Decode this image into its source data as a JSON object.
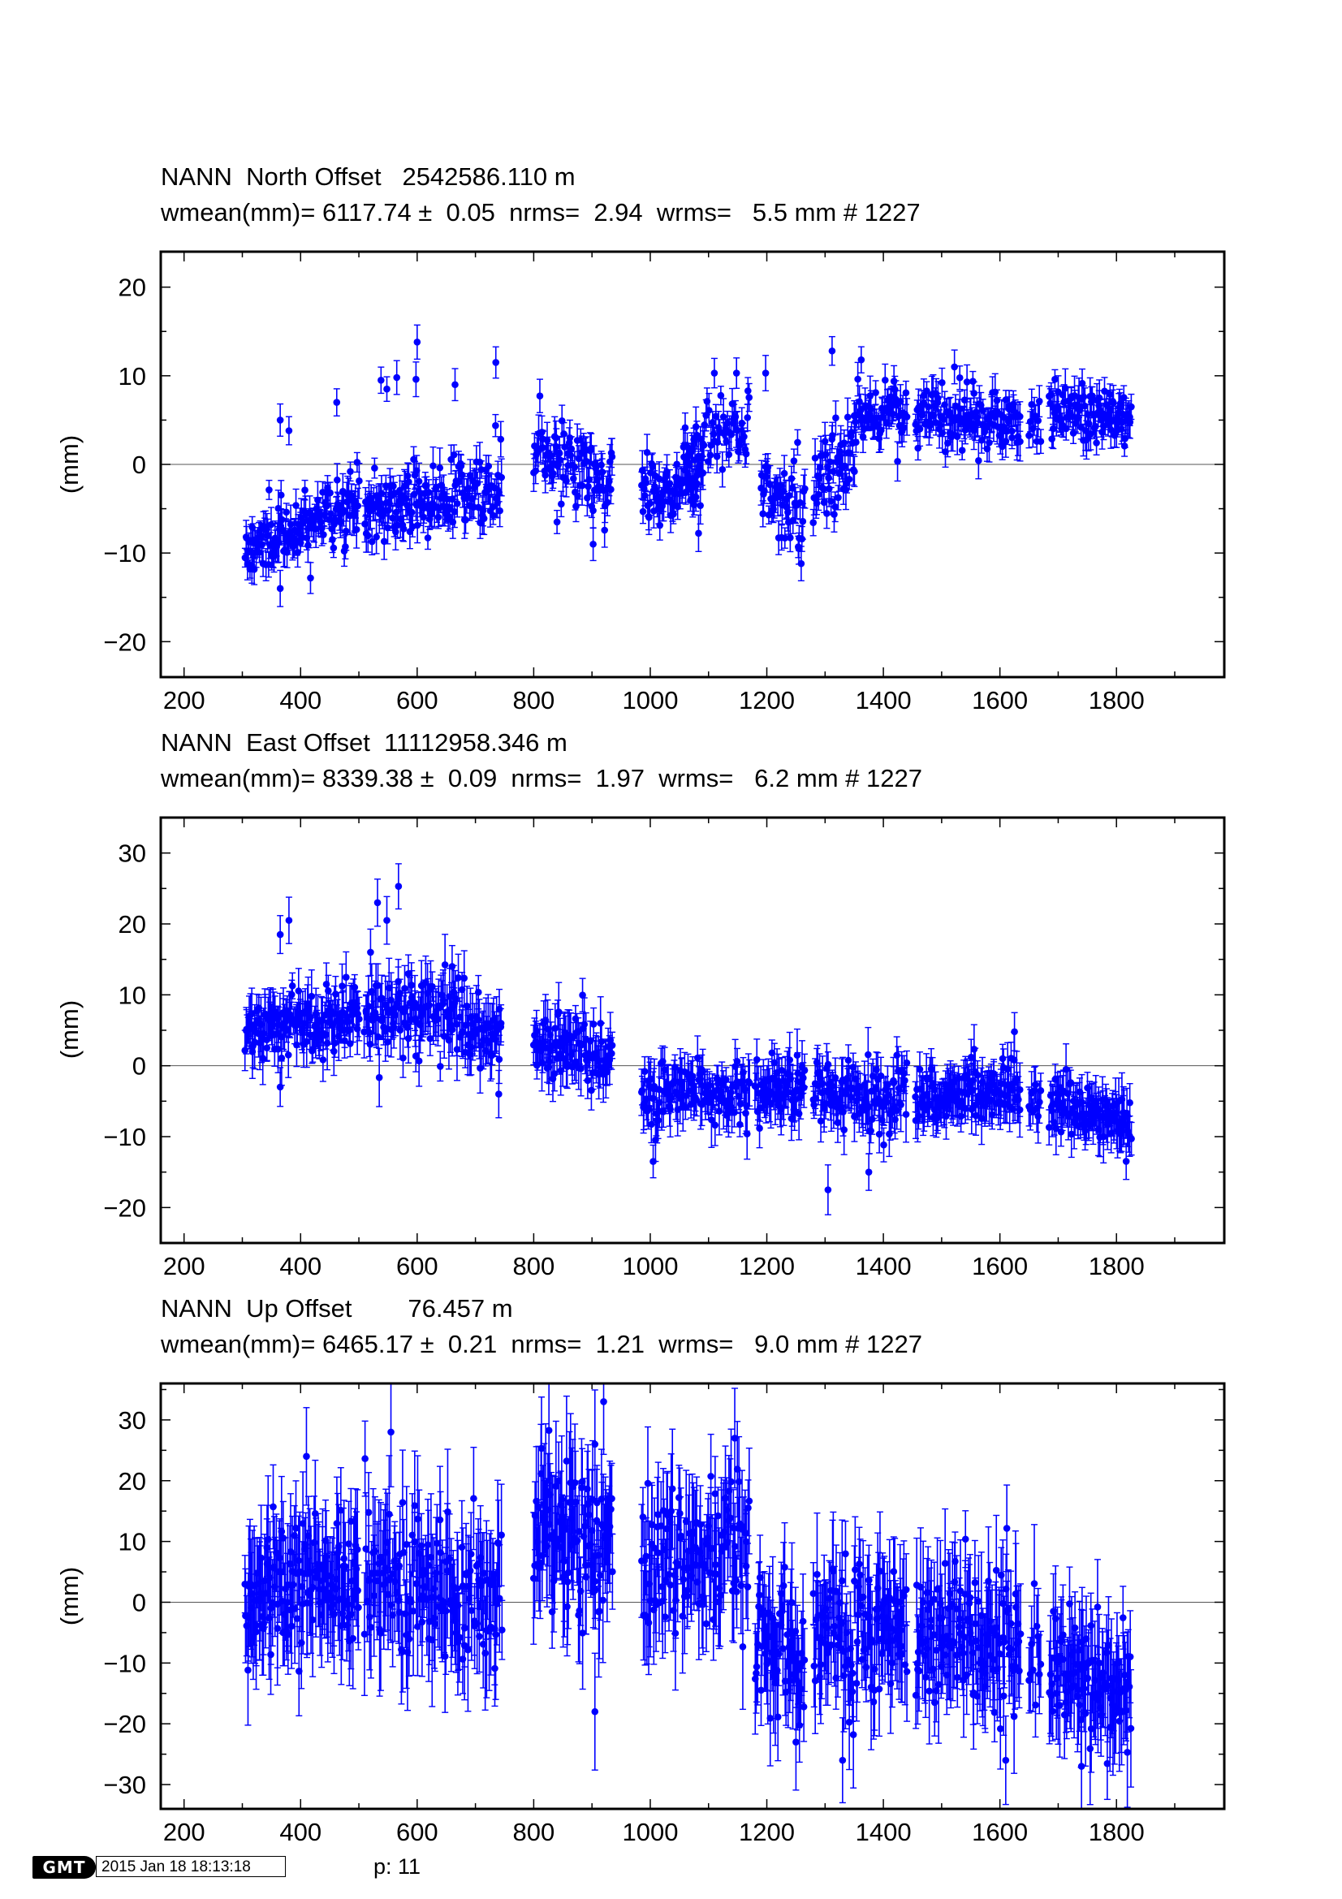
{
  "chart_data": [
    {
      "type": "scatter",
      "title": "NANN  North Offset   2542586.110 m",
      "subtitle": "wmean(mm)= 6117.74 ±  0.05  nrms=  2.94  wrms=   5.5 mm # 1227",
      "xlabel": "",
      "ylabel": "(mm)",
      "xlim": [
        160,
        1985
      ],
      "ylim": [
        -24,
        24
      ],
      "xticks": [
        200,
        400,
        600,
        800,
        1000,
        1200,
        1400,
        1600,
        1800
      ],
      "yticks": [
        -20,
        -10,
        0,
        10,
        20
      ],
      "zero_line": true,
      "seed": 11,
      "segments": [
        {
          "x0": 305,
          "x1": 400,
          "y0": -9,
          "y1": -8,
          "n": 70,
          "sd": 1.6,
          "err": 1.6
        },
        {
          "x0": 400,
          "x1": 500,
          "y0": -7,
          "y1": -4,
          "n": 70,
          "sd": 2.0,
          "err": 1.6
        },
        {
          "x0": 510,
          "x1": 620,
          "y0": -5,
          "y1": -4,
          "n": 80,
          "sd": 2.2,
          "err": 1.6
        },
        {
          "x0": 620,
          "x1": 745,
          "y0": -4,
          "y1": -3,
          "n": 80,
          "sd": 2.0,
          "err": 1.6
        },
        {
          "x0": 800,
          "x1": 935,
          "y0": 2,
          "y1": -2,
          "n": 90,
          "sd": 2.0,
          "err": 1.6
        },
        {
          "x0": 985,
          "x1": 1090,
          "y0": -3,
          "y1": -2,
          "n": 80,
          "sd": 2.0,
          "err": 1.6
        },
        {
          "x0": 1060,
          "x1": 1170,
          "y0": 2,
          "y1": 5,
          "n": 60,
          "sd": 2.4,
          "err": 1.6
        },
        {
          "x0": 1190,
          "x1": 1265,
          "y0": -2,
          "y1": -6,
          "n": 50,
          "sd": 2.4,
          "err": 1.6
        },
        {
          "x0": 1280,
          "x1": 1350,
          "y0": -4,
          "y1": 2,
          "n": 50,
          "sd": 3.0,
          "err": 1.6
        },
        {
          "x0": 1350,
          "x1": 1440,
          "y0": 5,
          "y1": 6,
          "n": 60,
          "sd": 1.8,
          "err": 1.6
        },
        {
          "x0": 1455,
          "x1": 1635,
          "y0": 6,
          "y1": 4,
          "n": 120,
          "sd": 1.8,
          "err": 1.6
        },
        {
          "x0": 1650,
          "x1": 1670,
          "y0": 5,
          "y1": 5,
          "n": 10,
          "sd": 1.0,
          "err": 1.6
        },
        {
          "x0": 1685,
          "x1": 1825,
          "y0": 6,
          "y1": 5,
          "n": 100,
          "sd": 1.6,
          "err": 1.6
        }
      ],
      "outliers": [
        {
          "x": 365,
          "y": 5
        },
        {
          "x": 380,
          "y": 3.8
        },
        {
          "x": 462,
          "y": 7
        },
        {
          "x": 538,
          "y": 9.5
        },
        {
          "x": 548,
          "y": 8.5
        },
        {
          "x": 565,
          "y": 9.8
        },
        {
          "x": 598,
          "y": 9.6
        },
        {
          "x": 600,
          "y": 13.8
        },
        {
          "x": 665,
          "y": 9
        },
        {
          "x": 735,
          "y": 11.5
        },
        {
          "x": 1110,
          "y": 10.3
        },
        {
          "x": 1148,
          "y": 10.3
        },
        {
          "x": 1198,
          "y": 10.3
        },
        {
          "x": 1312,
          "y": 12.8
        },
        {
          "x": 1362,
          "y": 11.8
        },
        {
          "x": 1522,
          "y": 11
        },
        {
          "x": 365,
          "y": -14
        },
        {
          "x": 840,
          "y": -6.5
        },
        {
          "x": 902,
          "y": -9
        },
        {
          "x": 1255,
          "y": -9.5
        }
      ]
    },
    {
      "type": "scatter",
      "title": "NANN  East Offset  11112958.346 m",
      "subtitle": "wmean(mm)= 8339.38 ±  0.09  nrms=  1.97  wrms=   6.2 mm # 1227",
      "xlabel": "",
      "ylabel": "(mm)",
      "xlim": [
        160,
        1985
      ],
      "ylim": [
        -25,
        35
      ],
      "xticks": [
        200,
        400,
        600,
        800,
        1000,
        1200,
        1400,
        1600,
        1800
      ],
      "yticks": [
        -20,
        -10,
        0,
        10,
        20,
        30
      ],
      "zero_line": true,
      "seed": 23,
      "segments": [
        {
          "x0": 305,
          "x1": 500,
          "y0": 5,
          "y1": 7,
          "n": 140,
          "sd": 2.2,
          "err": 2.8
        },
        {
          "x0": 510,
          "x1": 745,
          "y0": 8,
          "y1": 6,
          "n": 150,
          "sd": 2.6,
          "err": 3.2
        },
        {
          "x0": 800,
          "x1": 935,
          "y0": 3,
          "y1": 1,
          "n": 90,
          "sd": 2.4,
          "err": 3.0
        },
        {
          "x0": 985,
          "x1": 1170,
          "y0": -4,
          "y1": -3,
          "n": 120,
          "sd": 2.2,
          "err": 2.8
        },
        {
          "x0": 1180,
          "x1": 1265,
          "y0": -3,
          "y1": -3,
          "n": 60,
          "sd": 2.2,
          "err": 2.8
        },
        {
          "x0": 1280,
          "x1": 1440,
          "y0": -4,
          "y1": -4,
          "n": 110,
          "sd": 2.4,
          "err": 2.8
        },
        {
          "x0": 1455,
          "x1": 1635,
          "y0": -5,
          "y1": -3,
          "n": 130,
          "sd": 2.0,
          "err": 2.8
        },
        {
          "x0": 1650,
          "x1": 1670,
          "y0": -6,
          "y1": -6,
          "n": 10,
          "sd": 2.0,
          "err": 2.8
        },
        {
          "x0": 1685,
          "x1": 1825,
          "y0": -5,
          "y1": -8,
          "n": 100,
          "sd": 2.0,
          "err": 2.8
        }
      ],
      "outliers": [
        {
          "x": 365,
          "y": 18.5
        },
        {
          "x": 380,
          "y": 20.5
        },
        {
          "x": 532,
          "y": 23
        },
        {
          "x": 548,
          "y": 20.5
        },
        {
          "x": 568,
          "y": 25.3
        },
        {
          "x": 520,
          "y": 16
        },
        {
          "x": 660,
          "y": 14
        },
        {
          "x": 1005,
          "y": -13.5
        },
        {
          "x": 1305,
          "y": -17.5
        },
        {
          "x": 1375,
          "y": -15
        },
        {
          "x": 1625,
          "y": 4.8
        },
        {
          "x": 740,
          "y": -4
        },
        {
          "x": 365,
          "y": -3
        }
      ]
    },
    {
      "type": "scatter",
      "title": "NANN  Up Offset        76.457 m",
      "subtitle": "wmean(mm)= 6465.17 ±  0.21  nrms=  1.21  wrms=   9.0 mm # 1227",
      "xlabel": "",
      "ylabel": "(mm)",
      "xlim": [
        160,
        1985
      ],
      "ylim": [
        -34,
        36
      ],
      "xticks": [
        200,
        400,
        600,
        800,
        1000,
        1200,
        1400,
        1600,
        1800
      ],
      "yticks": [
        -30,
        -20,
        -10,
        0,
        10,
        20,
        30
      ],
      "zero_line": true,
      "seed": 37,
      "segments": [
        {
          "x0": 305,
          "x1": 500,
          "y0": 0,
          "y1": 5,
          "n": 140,
          "sd": 5.5,
          "err": 7.5
        },
        {
          "x0": 510,
          "x1": 745,
          "y0": 4,
          "y1": 0,
          "n": 150,
          "sd": 6.5,
          "err": 8.0
        },
        {
          "x0": 800,
          "x1": 935,
          "y0": 12,
          "y1": 10,
          "n": 100,
          "sd": 6.0,
          "err": 8.5
        },
        {
          "x0": 985,
          "x1": 1170,
          "y0": 4,
          "y1": 10,
          "n": 120,
          "sd": 6.0,
          "err": 7.5
        },
        {
          "x0": 1180,
          "x1": 1265,
          "y0": -4,
          "y1": -10,
          "n": 60,
          "sd": 6.0,
          "err": 7.5
        },
        {
          "x0": 1280,
          "x1": 1440,
          "y0": -5,
          "y1": -5,
          "n": 110,
          "sd": 6.5,
          "err": 7.5
        },
        {
          "x0": 1455,
          "x1": 1635,
          "y0": -4,
          "y1": -6,
          "n": 130,
          "sd": 5.5,
          "err": 7.5
        },
        {
          "x0": 1650,
          "x1": 1670,
          "y0": -8,
          "y1": -8,
          "n": 10,
          "sd": 4.0,
          "err": 7.0
        },
        {
          "x0": 1685,
          "x1": 1825,
          "y0": -10,
          "y1": -15,
          "n": 100,
          "sd": 5.0,
          "err": 7.0
        }
      ],
      "outliers": [
        {
          "x": 410,
          "y": 24
        },
        {
          "x": 555,
          "y": 28
        },
        {
          "x": 905,
          "y": 26
        },
        {
          "x": 920,
          "y": 33
        },
        {
          "x": 1145,
          "y": 27
        },
        {
          "x": 1250,
          "y": -23
        },
        {
          "x": 1330,
          "y": -26
        },
        {
          "x": 1610,
          "y": -26
        },
        {
          "x": 905,
          "y": -18
        },
        {
          "x": 1740,
          "y": -27
        }
      ]
    }
  ],
  "footer": {
    "logo": "GMT",
    "timestamp": "2015 Jan 18 18:13:18",
    "page": "p: 11"
  },
  "colors": {
    "series": "#0000ff",
    "axis": "#000000",
    "zero_line": "#555555"
  }
}
